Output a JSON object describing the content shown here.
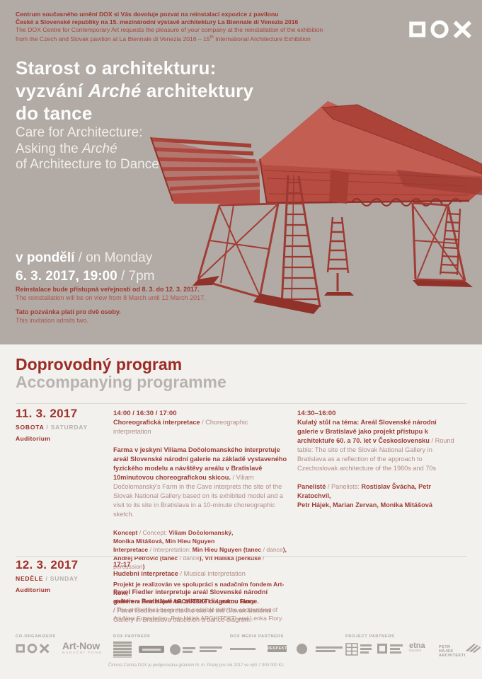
{
  "colors": {
    "hero_bg": "#b1aaa5",
    "section_bg": "#f2f1ee",
    "accent_red": "#a4382f",
    "dark_red": "#9c2b25",
    "structure_red": "#b5493f",
    "muted_gray": "#b6b1ac",
    "white": "#ffffff"
  },
  "hero": {
    "logo_name": "DOX",
    "invite": {
      "cz1": "Centrum současného umění DOX si Vás dovoluje pozvat na reinstalaci expozice z pavilonu",
      "cz2": "České a Slovenské republiky na 15. mezinárodní výstavě architektury La Biennale di Venezia 2016",
      "en1": "The DOX Centre for Contemporary Art requests the pleasure of your company at the reinstallation of the exhibition",
      "en2_pre": "from the Czech and Slovak pavilion at La Biennale di Venezia 2016 – 15",
      "en2_sup": "th",
      "en2_post": " International Architecture Exhibition"
    },
    "title": [
      [
        "",
        "Starost o architekturu:\nvyzvání "
      ],
      [
        "i",
        "Arché"
      ],
      [
        "",
        " architektury\ndo tance"
      ]
    ],
    "subtitle": [
      [
        "",
        "Care for Architecture:\nAsking the "
      ],
      [
        "i",
        "Arché"
      ],
      [
        "",
        "\nof Architecture to Dance"
      ]
    ],
    "when_line1": [
      [
        "b",
        "v pondělí"
      ],
      [
        "r",
        " / on Monday"
      ]
    ],
    "when_line2": [
      [
        "b",
        "6. 3. 2017, 19:00"
      ],
      [
        "r",
        " / 7pm"
      ]
    ],
    "note1": [
      [
        "b",
        "Reinstalace bude přístupná veřejnosti od 8. 3. do 12. 3. 2017."
      ],
      [
        "r",
        "\nThe reinstallation will be on view from 8 March until 12 March 2017."
      ]
    ],
    "note2": [
      [
        "b",
        "Tato pozvánka platí pro dvě osoby."
      ],
      [
        "r",
        "\nThis invitation admits two."
      ]
    ]
  },
  "program": {
    "heading_cz": "Doprovodný program",
    "heading_en": "Accompanying programme",
    "events": [
      {
        "date": "11. 3. 2017",
        "day": [
          [
            "b",
            "SOBOTA"
          ],
          [
            "g",
            " / SATURDAY"
          ]
        ],
        "venue": "Auditorium",
        "c2_times": "14:00 / 16:30 / 17:00",
        "c2_heading": [
          [
            "b",
            "Choreografická interpretace"
          ],
          [
            "r",
            " / Choreographic interpretation"
          ]
        ],
        "c2_body": [
          [
            "b",
            "Farma v jeskyni Viliama Dočolomanského interpretuje areál Slovenské národní galerie na základě vystaveného fyzického modelu a návštěvy areálu v Bratislavě 10minutovou choreografickou skicou. "
          ],
          [
            "r",
            "/ Viliam Dočolomanský's Farm in the Cave interprets the site of the Slovak National Gallery based on its exhibited model and a visit to its site in Bratislava in a 10-minute choreographic sketch."
          ]
        ],
        "c2_credits": [
          [
            "b",
            "Koncept"
          ],
          [
            "r",
            " / Concept: "
          ],
          [
            "b",
            "Viliam Dočolomanský,\nMonika Mitášová, Min Hieu Nguyen\nInterpretace"
          ],
          [
            "r",
            " / Interpretation: "
          ],
          [
            "b",
            "Min Hieu Nguyen (tanec"
          ],
          [
            "r",
            " / dance"
          ],
          [
            "b",
            "),\nAndrej Petrovič (tanec"
          ],
          [
            "r",
            " / dance"
          ],
          [
            "b",
            "), Vít Halška (perkuse"
          ],
          [
            "r",
            " / percussion"
          ],
          [
            "b",
            ")"
          ]
        ],
        "c2_project": [
          [
            "b",
            "Projekt je realizován ve spolupráci s nadačním fondem Art-Now,\nateliérem Petr Hájek ARCHITEKTI a Lenkou Flory.\n"
          ],
          [
            "r",
            "/ The project has been made possible with the cooperation of Art-Now Foundation, Petr Hájek ARCHITEKTI and Lenka Flory."
          ]
        ],
        "c3_times": "14:30–16:00",
        "c3_body": [
          [
            "b",
            "Kulatý stůl na téma: Areál Slovenské národní galerie v Bratislavě jako projekt přístupu k architektuře 60. a 70. let v Československu "
          ],
          [
            "r",
            "/ Round table: The site of the Slovak National Gallery in Bratislava as a reflection of the approach to Czechoslovak architecture of the 1960s and 70s"
          ]
        ],
        "c3_panelists": [
          [
            "b",
            "Panelisté"
          ],
          [
            "r",
            " / Panelists: "
          ],
          [
            "b",
            "Rostislav Švácha, Petr Kratochvíl,\nPetr Hájek, Marian Zervan, Monika Mitášová"
          ]
        ]
      },
      {
        "date": "12. 3. 2017",
        "day": [
          [
            "b",
            "NEDĚLE"
          ],
          [
            "g",
            " / SUNDAY"
          ]
        ],
        "venue": "Auditorium",
        "c2_times": "17:17",
        "c2_heading": [
          [
            "b",
            "Hudební interpretace"
          ],
          [
            "r",
            " / Musical interpretation"
          ]
        ],
        "c2_body": [
          [
            "b",
            "Pavel Fiedler interpretuje areál Slovenské národní galerie v Bratislavě na základě diagramu tance.\n"
          ],
          [
            "r",
            "/ Pavel Fiedler interprets the site of the Slovak National Gallery in Bratislava based on a dance diagram."
          ]
        ]
      }
    ]
  },
  "footer": {
    "labels": {
      "co": "CO-ORGANIZERS",
      "dox": "DOX PARTNERS",
      "media": "DOX MEDIA PARTNERS",
      "project": "PROJECT PARTNERS"
    },
    "artnow_line1": "Art-Now",
    "artnow_line2": "NADAČNÍ FOND",
    "respekt": "RESPEKT",
    "etna_line1": "etna",
    "etna_line2": "iGuzzini",
    "petr_line1": "PETR HÁJEK",
    "petr_line2": "ARCHITEKTI",
    "grant_note": "Činnost Centra DOX je podporována grantem hl. m. Prahy pro rok 2017 ve výši 7 900 000 Kč."
  }
}
